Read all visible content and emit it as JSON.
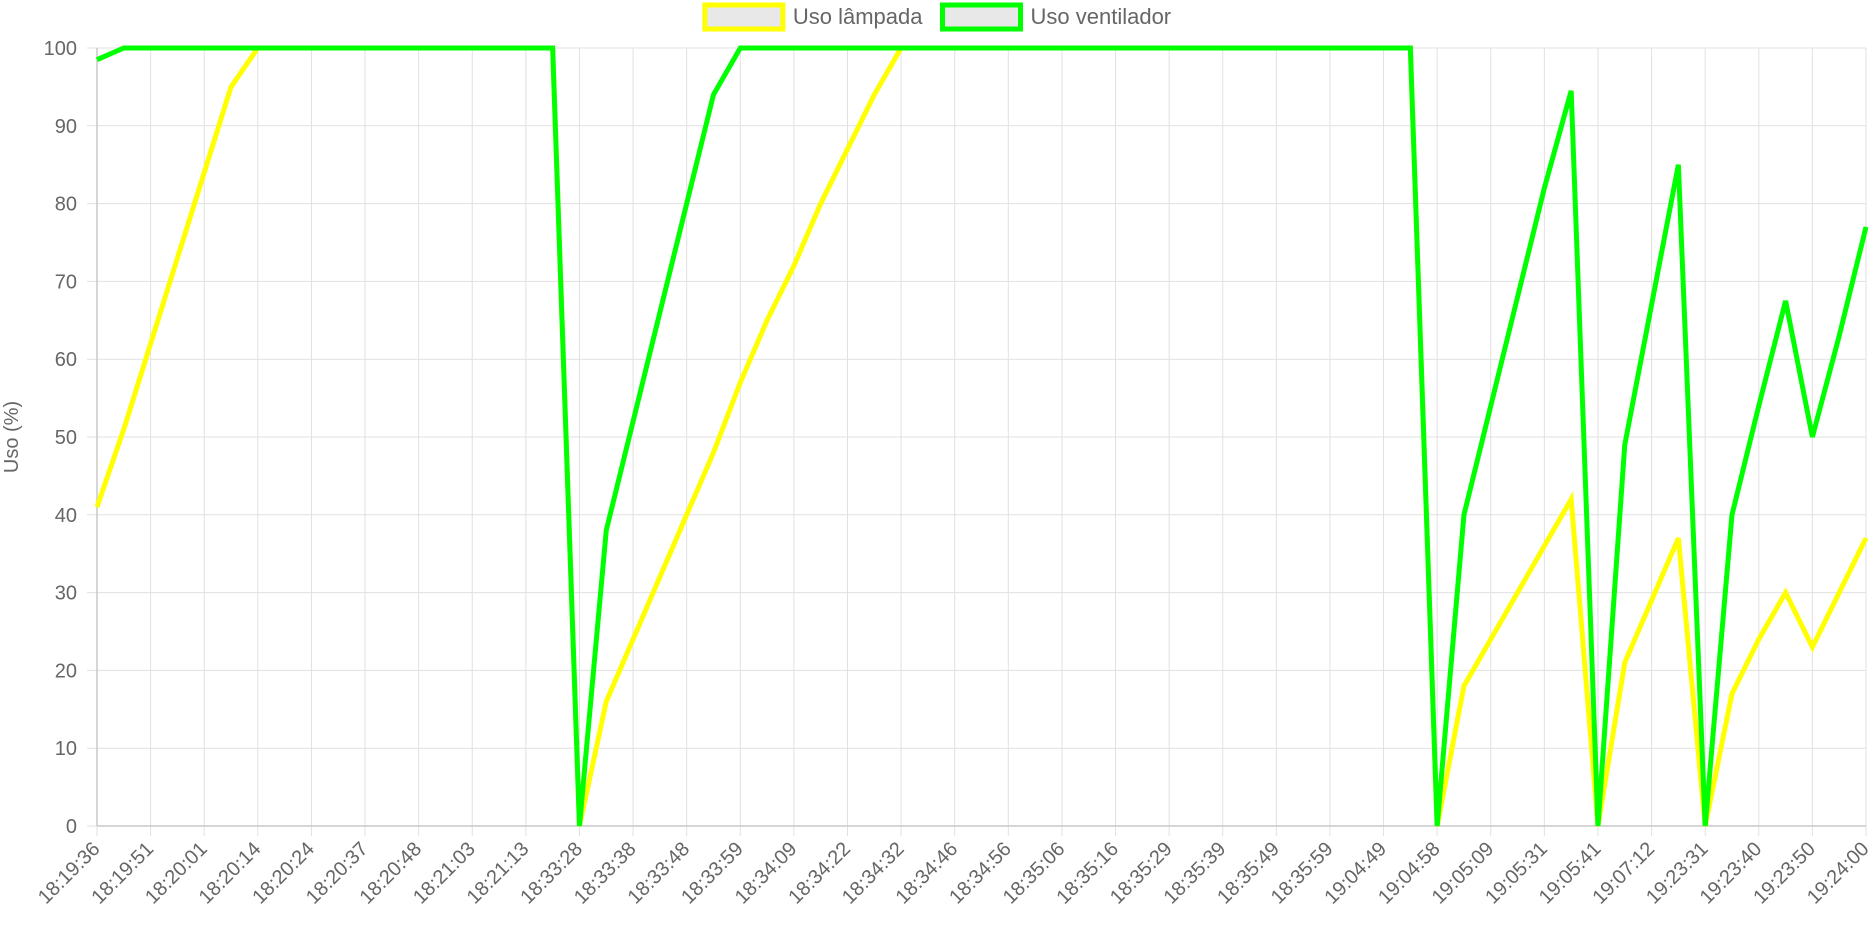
{
  "chart_data": {
    "type": "line",
    "ylabel": "Uso (%)",
    "xlabel": "",
    "ylim": [
      0,
      100
    ],
    "yticks": [
      0,
      10,
      20,
      30,
      40,
      50,
      60,
      70,
      80,
      90,
      100
    ],
    "grid": true,
    "legend_position": "top-center",
    "categories": [
      "18:19:36",
      "18:19:51",
      "18:20:01",
      "18:20:14",
      "18:20:24",
      "18:20:37",
      "18:20:48",
      "18:21:03",
      "18:21:13",
      "18:33:28",
      "18:33:38",
      "18:33:48",
      "18:33:59",
      "18:34:09",
      "18:34:22",
      "18:34:32",
      "18:34:46",
      "18:34:56",
      "18:35:06",
      "18:35:16",
      "18:35:29",
      "18:35:39",
      "18:35:49",
      "18:35:59",
      "19:04:49",
      "19:04:58",
      "19:05:09",
      "19:05:31",
      "19:05:41",
      "19:07:12",
      "19:23:31",
      "19:23:40",
      "19:23:50",
      "19:24:00"
    ],
    "x": [
      0,
      0.5,
      1,
      1.5,
      2,
      2.5,
      3,
      3.5,
      4,
      4.5,
      5,
      5.5,
      6,
      6.5,
      7,
      7.5,
      8,
      8.5,
      9,
      9.5,
      10,
      10.5,
      11,
      11.5,
      12,
      12.5,
      13,
      13.5,
      14,
      14.5,
      15,
      15.5,
      16,
      16.5,
      17,
      17.5,
      18,
      18.5,
      19,
      19.5,
      20,
      20.5,
      21,
      21.5,
      22,
      22.5,
      23,
      23.5,
      24,
      24.5,
      25,
      25.5,
      26,
      26.5,
      27,
      27.5,
      28,
      28.5,
      29,
      29.5,
      30,
      30.5,
      31,
      31.5,
      32,
      32.5,
      33
    ],
    "series": [
      {
        "name": "Uso lâmpada",
        "color": "#ffff00",
        "values": [
          41,
          51,
          62,
          73,
          84,
          95,
          100,
          100,
          100,
          100,
          100,
          100,
          100,
          100,
          100,
          100,
          100,
          100,
          0,
          16,
          24,
          32,
          40,
          48,
          57,
          65,
          72,
          80,
          87,
          94,
          100,
          100,
          100,
          100,
          100,
          100,
          100,
          100,
          100,
          100,
          100,
          100,
          100,
          100,
          100,
          100,
          100,
          100,
          100,
          100,
          0,
          18,
          24,
          30,
          36,
          42,
          0,
          21,
          29,
          37,
          0,
          17,
          24,
          30,
          23,
          30,
          37
        ]
      },
      {
        "name": "Uso ventilador",
        "color": "#00ff00",
        "values": [
          98.5,
          100,
          100,
          100,
          100,
          100,
          100,
          100,
          100,
          100,
          100,
          100,
          100,
          100,
          100,
          100,
          100,
          100,
          0,
          38,
          52,
          66,
          80,
          94,
          100,
          100,
          100,
          100,
          100,
          100,
          100,
          100,
          100,
          100,
          100,
          100,
          100,
          100,
          100,
          100,
          100,
          100,
          100,
          100,
          100,
          100,
          100,
          100,
          100,
          100,
          0,
          40,
          54,
          68,
          82,
          94.5,
          0,
          49,
          67,
          85,
          0,
          40,
          54,
          67.5,
          50,
          63,
          77
        ]
      }
    ]
  },
  "legend": {
    "items": [
      {
        "label": "Uso lâmpada",
        "color": "#ffff00"
      },
      {
        "label": "Uso ventilador",
        "color": "#00ff00"
      }
    ]
  }
}
